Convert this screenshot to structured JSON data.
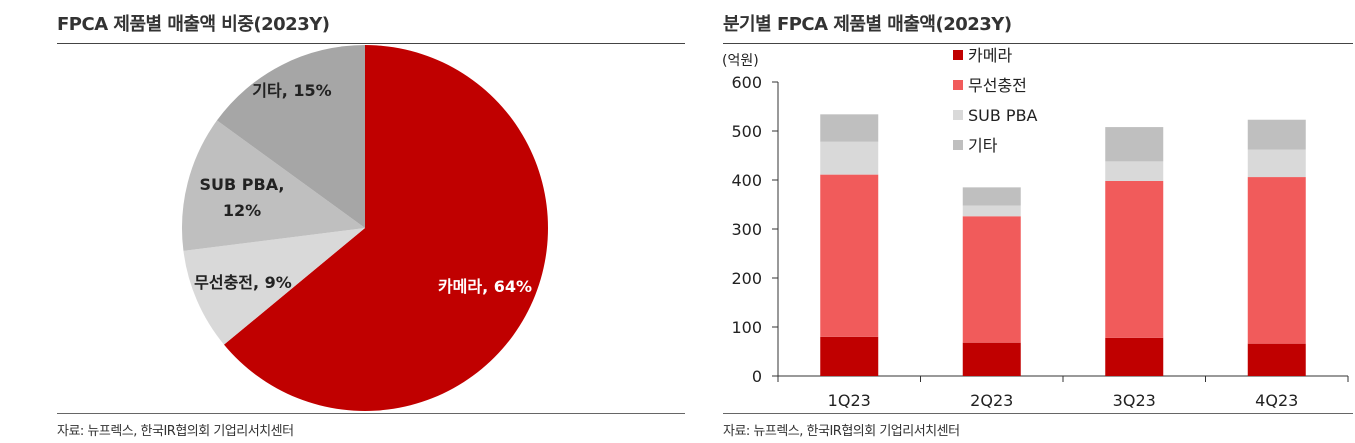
{
  "left": {
    "title": "FPCA 제품별 매출액 비중(2023Y)",
    "source": "자료: 뉴프렉스, 한국IR협의회 기업리서치센터"
  },
  "right": {
    "title": "분기별 FPCA 제품별 매출액(2023Y)",
    "source": "자료: 뉴프렉스, 한국IR협의회 기업리서치센터"
  },
  "chart_data": [
    {
      "type": "pie",
      "title": "FPCA 제품별 매출액 비중(2023Y)",
      "slices": [
        {
          "label": "카메라",
          "value": 64,
          "display": "카메라, 64%",
          "color": "#c00000"
        },
        {
          "label": "무선충전",
          "value": 9,
          "display": "무선충전, 9%",
          "color": "#d9d9d9"
        },
        {
          "label": "SUB PBA",
          "value": 12,
          "display": [
            "SUB PBA,",
            "12%"
          ],
          "color": "#bfbfbf"
        },
        {
          "label": "기타",
          "value": 15,
          "display": "기타, 15%",
          "color": "#a6a6a6"
        }
      ]
    },
    {
      "type": "bar",
      "stacked": true,
      "title": "분기별 FPCA 제품별 매출액(2023Y)",
      "ylabel": "(억원)",
      "ylim": [
        0,
        600
      ],
      "yticks": [
        0,
        100,
        200,
        300,
        400,
        500,
        600
      ],
      "categories": [
        "1Q23",
        "2Q23",
        "3Q23",
        "4Q23"
      ],
      "legend_position": "top-center",
      "series": [
        {
          "name": "카메라",
          "color": "#c00000",
          "values": [
            80,
            68,
            78,
            66
          ]
        },
        {
          "name": "무선충전",
          "color": "#f15b5b",
          "values": [
            331,
            258,
            320,
            340
          ]
        },
        {
          "name": "SUB PBA",
          "color": "#d9d9d9",
          "values": [
            67,
            22,
            40,
            56
          ]
        },
        {
          "name": "기타",
          "color": "#bfbfbf",
          "values": [
            56,
            37,
            70,
            61
          ]
        }
      ]
    }
  ]
}
